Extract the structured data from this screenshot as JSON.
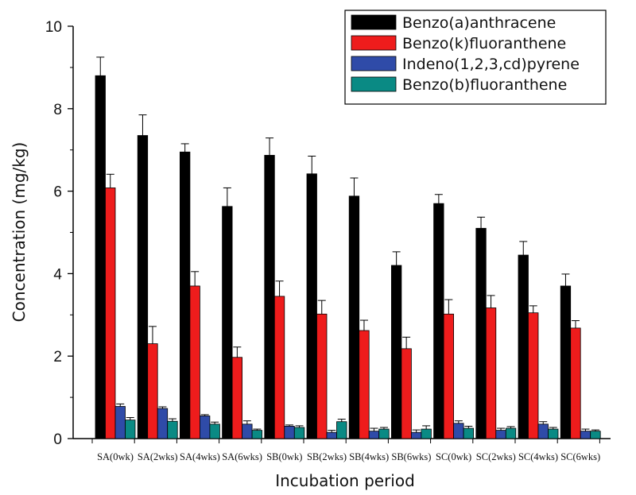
{
  "chart_data": {
    "type": "bar",
    "title": "",
    "xlabel": "Incubation period",
    "ylabel": "Concentration (mg/kg)",
    "ylim": [
      0,
      10
    ],
    "yticks": [
      "0",
      "2",
      "4",
      "6",
      "8",
      "10"
    ],
    "grid": false,
    "legend_position": "top-right",
    "categories": [
      "SA(0wk)",
      "SA(2wks)",
      "SA(4wks)",
      "SA(6wks)",
      "SB(0wk)",
      "SB(2wks)",
      "SB(4wks)",
      "SB(6wks)",
      "SC(0wk)",
      "SC(2wks)",
      "SC(4wks)",
      "SC(6wks)"
    ],
    "series": [
      {
        "name": "Benzo(a)anthracene",
        "color": "#000000",
        "values": [
          8.8,
          7.35,
          6.95,
          5.63,
          6.87,
          6.42,
          5.88,
          4.2,
          5.7,
          5.1,
          4.45,
          3.7
        ],
        "errors": [
          0.45,
          0.5,
          0.2,
          0.45,
          0.42,
          0.43,
          0.44,
          0.33,
          0.22,
          0.27,
          0.33,
          0.29
        ]
      },
      {
        "name": "Benzo(k)fluoranthene",
        "color": "#ee1c1c",
        "values": [
          6.08,
          2.3,
          3.7,
          1.97,
          3.45,
          3.02,
          2.62,
          2.18,
          3.02,
          3.17,
          3.05,
          2.68
        ],
        "errors": [
          0.33,
          0.42,
          0.35,
          0.25,
          0.37,
          0.33,
          0.25,
          0.28,
          0.35,
          0.3,
          0.17,
          0.18
        ]
      },
      {
        "name": "Indeno(1,2,3,cd)pyrene",
        "color": "#2f4ba8",
        "values": [
          0.78,
          0.73,
          0.55,
          0.35,
          0.3,
          0.15,
          0.18,
          0.15,
          0.37,
          0.2,
          0.35,
          0.18
        ],
        "errors": [
          0.06,
          0.04,
          0.03,
          0.08,
          0.03,
          0.05,
          0.07,
          0.06,
          0.06,
          0.05,
          0.06,
          0.05
        ]
      },
      {
        "name": "Benzo(b)fluoranthene",
        "color": "#0a8a84",
        "values": [
          0.45,
          0.42,
          0.35,
          0.2,
          0.27,
          0.41,
          0.23,
          0.23,
          0.25,
          0.25,
          0.23,
          0.18
        ],
        "errors": [
          0.06,
          0.06,
          0.05,
          0.03,
          0.04,
          0.06,
          0.04,
          0.08,
          0.05,
          0.04,
          0.04,
          0.03
        ]
      }
    ]
  }
}
